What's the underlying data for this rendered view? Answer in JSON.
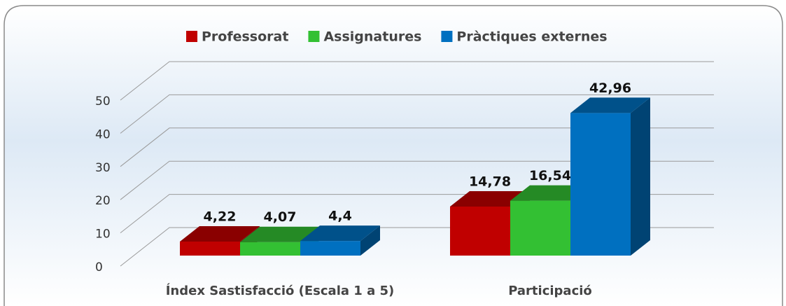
{
  "chart_data": {
    "type": "bar3d",
    "categories": [
      "Índex Sastisfacció (Escala 1 a 5)",
      "Participació"
    ],
    "series": [
      {
        "name": "Professorat",
        "color": "#c00000",
        "values": [
          4.22,
          14.78
        ],
        "value_labels": [
          "4,22",
          "14,78"
        ]
      },
      {
        "name": "Assignatures",
        "color": "#33c033",
        "values": [
          4.07,
          16.54
        ],
        "value_labels": [
          "4,07",
          "16,54"
        ]
      },
      {
        "name": "Pràctiques externes",
        "color": "#0070c0",
        "values": [
          4.4,
          42.96
        ],
        "value_labels": [
          "4,4",
          "42,96"
        ]
      }
    ],
    "ylim": [
      0,
      50
    ],
    "yticks": [
      0,
      10,
      20,
      30,
      40,
      50
    ],
    "grid": true,
    "legend": "top"
  }
}
